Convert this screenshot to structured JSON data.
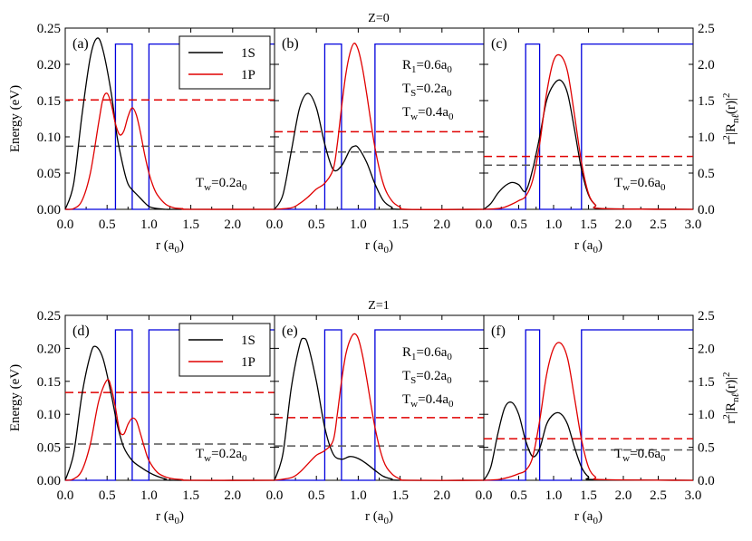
{
  "chart_data": [
    {
      "title": "Z=0",
      "panels": [
        {
          "label": "(a)",
          "type": "line",
          "tw_label": "T",
          "tw_sub": "w",
          "tw_value": "=0.2a",
          "tw_unit_sub": "0",
          "xlim": [
            0,
            2.5
          ],
          "ylim": [
            0,
            0.25
          ],
          "x_ticks": [
            "0.0",
            "0.5",
            "1.0",
            "1.5",
            "2.0"
          ],
          "potential_x": [
            0,
            0.6,
            0.6,
            0.8,
            0.8,
            1.0,
            1.0,
            2.5
          ],
          "potential_y": [
            0,
            0,
            0.228,
            0.228,
            0,
            0,
            0.228,
            0.228
          ],
          "energy_1S": 0.087,
          "energy_1P": 0.151,
          "series": [
            {
              "name": "1S",
              "x": [
                0,
                0.1,
                0.2,
                0.3,
                0.38,
                0.45,
                0.55,
                0.62,
                0.7,
                0.75,
                0.8,
                0.85,
                0.9,
                0.95,
                1.0,
                1.05,
                1.1,
                1.2,
                1.3,
                1.5,
                2.5
              ],
              "y": [
                0,
                0.035,
                0.13,
                0.21,
                0.236,
                0.22,
                0.16,
                0.1,
                0.055,
                0.035,
                0.027,
                0.021,
                0.015,
                0.009,
                0.004,
                0.002,
                0.001,
                0,
                0,
                0,
                0
              ]
            },
            {
              "name": "1P",
              "x": [
                0,
                0.1,
                0.2,
                0.3,
                0.4,
                0.45,
                0.5,
                0.55,
                0.6,
                0.65,
                0.7,
                0.75,
                0.8,
                0.85,
                0.9,
                0.95,
                1.0,
                1.05,
                1.1,
                1.2,
                1.3,
                1.4,
                1.5,
                2.5
              ],
              "y": [
                0,
                0.001,
                0.012,
                0.05,
                0.12,
                0.152,
                0.16,
                0.145,
                0.118,
                0.103,
                0.108,
                0.128,
                0.14,
                0.13,
                0.105,
                0.075,
                0.05,
                0.032,
                0.02,
                0.007,
                0.002,
                0.001,
                0,
                0
              ]
            }
          ]
        },
        {
          "label": "(b)",
          "type": "line",
          "tw_label": "",
          "tw_sub": "",
          "tw_value": "",
          "tw_unit_sub": "",
          "xlim": [
            0,
            2.5
          ],
          "ylim": [
            0,
            0.25
          ],
          "x_ticks": [
            "0.0",
            "0.5",
            "1.0",
            "1.5",
            "2.0"
          ],
          "potential_x": [
            0,
            0.6,
            0.6,
            0.8,
            0.8,
            1.2,
            1.2,
            2.5
          ],
          "potential_y": [
            0,
            0,
            0.228,
            0.228,
            0,
            0,
            0.228,
            0.228
          ],
          "energy_1S": 0.079,
          "energy_1P": 0.107,
          "series": [
            {
              "name": "1S",
              "x": [
                0,
                0.1,
                0.2,
                0.3,
                0.4,
                0.5,
                0.6,
                0.7,
                0.8,
                0.9,
                0.95,
                1.0,
                1.1,
                1.2,
                1.3,
                1.4,
                1.5,
                2.5
              ],
              "y": [
                0,
                0.02,
                0.08,
                0.14,
                0.16,
                0.14,
                0.09,
                0.055,
                0.06,
                0.082,
                0.087,
                0.085,
                0.065,
                0.035,
                0.012,
                0.003,
                0,
                0
              ]
            },
            {
              "name": "1P",
              "x": [
                0,
                0.2,
                0.3,
                0.4,
                0.5,
                0.6,
                0.7,
                0.75,
                0.8,
                0.85,
                0.9,
                0.95,
                1.0,
                1.05,
                1.1,
                1.2,
                1.3,
                1.4,
                1.5,
                1.6,
                2.5
              ],
              "y": [
                0,
                0.002,
                0.008,
                0.017,
                0.028,
                0.036,
                0.055,
                0.09,
                0.14,
                0.185,
                0.215,
                0.229,
                0.22,
                0.195,
                0.16,
                0.085,
                0.035,
                0.012,
                0.003,
                0,
                0
              ]
            }
          ]
        },
        {
          "label": "(c)",
          "type": "line",
          "tw_label": "T",
          "tw_sub": "w",
          "tw_value": "=0.6a",
          "tw_unit_sub": "0",
          "xlim": [
            0,
            3.0
          ],
          "ylim": [
            0,
            0.25
          ],
          "x_ticks": [
            "0.0",
            "0.5",
            "1.0",
            "1.5",
            "2.0",
            "2.5",
            "3.0"
          ],
          "potential_x": [
            0,
            0.6,
            0.6,
            0.8,
            0.8,
            1.4,
            1.4,
            3.0
          ],
          "potential_y": [
            0,
            0,
            0.228,
            0.228,
            0,
            0,
            0.228,
            0.228
          ],
          "energy_1S": 0.061,
          "energy_1P": 0.073,
          "series": [
            {
              "name": "1S",
              "x": [
                0,
                0.1,
                0.2,
                0.3,
                0.4,
                0.5,
                0.6,
                0.7,
                0.8,
                0.9,
                1.0,
                1.1,
                1.2,
                1.3,
                1.4,
                1.5,
                1.6,
                1.7,
                3.0
              ],
              "y": [
                0,
                0.008,
                0.022,
                0.032,
                0.037,
                0.034,
                0.025,
                0.055,
                0.1,
                0.15,
                0.172,
                0.178,
                0.16,
                0.11,
                0.055,
                0.02,
                0.006,
                0.001,
                0
              ]
            },
            {
              "name": "1P",
              "x": [
                0,
                0.2,
                0.3,
                0.4,
                0.5,
                0.6,
                0.7,
                0.8,
                0.9,
                1.0,
                1.1,
                1.2,
                1.3,
                1.4,
                1.5,
                1.6,
                1.7,
                3.0
              ],
              "y": [
                0,
                0.001,
                0.003,
                0.007,
                0.012,
                0.018,
                0.04,
                0.09,
                0.16,
                0.205,
                0.212,
                0.19,
                0.13,
                0.065,
                0.022,
                0.006,
                0.001,
                0
              ]
            }
          ]
        }
      ]
    },
    {
      "title": "Z=1",
      "panels": [
        {
          "label": "(d)",
          "type": "line",
          "tw_label": "T",
          "tw_sub": "w",
          "tw_value": "=0.2a",
          "tw_unit_sub": "0",
          "xlim": [
            0,
            2.5
          ],
          "ylim": [
            0,
            0.25
          ],
          "x_ticks": [
            "0.0",
            "0.5",
            "1.0",
            "1.5",
            "2.0"
          ],
          "potential_x": [
            0,
            0.6,
            0.6,
            0.8,
            0.8,
            1.0,
            1.0,
            2.5
          ],
          "potential_y": [
            0,
            0,
            0.228,
            0.228,
            0,
            0,
            0.228,
            0.228
          ],
          "energy_1S": 0.055,
          "energy_1P": 0.133,
          "series": [
            {
              "name": "1S",
              "x": [
                0,
                0.1,
                0.2,
                0.3,
                0.36,
                0.45,
                0.55,
                0.62,
                0.7,
                0.8,
                0.9,
                1.0,
                1.1,
                1.2,
                1.3,
                2.5
              ],
              "y": [
                0,
                0.04,
                0.13,
                0.19,
                0.203,
                0.185,
                0.13,
                0.085,
                0.05,
                0.03,
                0.02,
                0.012,
                0.006,
                0.002,
                0,
                0
              ]
            },
            {
              "name": "1P",
              "x": [
                0,
                0.1,
                0.2,
                0.3,
                0.4,
                0.5,
                0.55,
                0.6,
                0.65,
                0.7,
                0.75,
                0.8,
                0.85,
                0.9,
                0.95,
                1.0,
                1.1,
                1.2,
                1.3,
                1.4,
                1.5,
                2.5
              ],
              "y": [
                0,
                0.002,
                0.015,
                0.055,
                0.12,
                0.152,
                0.14,
                0.11,
                0.075,
                0.07,
                0.085,
                0.094,
                0.09,
                0.07,
                0.048,
                0.03,
                0.012,
                0.005,
                0.002,
                0.001,
                0,
                0
              ]
            }
          ]
        },
        {
          "label": "(e)",
          "type": "line",
          "tw_label": "",
          "tw_sub": "",
          "tw_value": "",
          "tw_unit_sub": "",
          "xlim": [
            0,
            2.5
          ],
          "ylim": [
            0,
            0.25
          ],
          "x_ticks": [
            "0.0",
            "0.5",
            "1.0",
            "1.5",
            "2.0"
          ],
          "potential_x": [
            0,
            0.6,
            0.6,
            0.8,
            0.8,
            1.2,
            1.2,
            2.5
          ],
          "potential_y": [
            0,
            0,
            0.228,
            0.228,
            0,
            0,
            0.228,
            0.228
          ],
          "energy_1S": 0.052,
          "energy_1P": 0.095,
          "series": [
            {
              "name": "1S",
              "x": [
                0,
                0.1,
                0.2,
                0.3,
                0.35,
                0.4,
                0.5,
                0.6,
                0.7,
                0.8,
                0.9,
                1.0,
                1.1,
                1.2,
                1.3,
                1.4,
                1.5,
                2.5
              ],
              "y": [
                0,
                0.04,
                0.14,
                0.205,
                0.215,
                0.205,
                0.15,
                0.08,
                0.04,
                0.032,
                0.036,
                0.033,
                0.025,
                0.015,
                0.006,
                0.002,
                0,
                0
              ]
            },
            {
              "name": "1P",
              "x": [
                0,
                0.2,
                0.3,
                0.4,
                0.5,
                0.6,
                0.7,
                0.75,
                0.8,
                0.85,
                0.9,
                0.95,
                1.0,
                1.05,
                1.1,
                1.2,
                1.3,
                1.4,
                1.5,
                1.6,
                2.5
              ],
              "y": [
                0,
                0.004,
                0.012,
                0.025,
                0.038,
                0.045,
                0.06,
                0.1,
                0.15,
                0.19,
                0.212,
                0.222,
                0.215,
                0.19,
                0.155,
                0.08,
                0.03,
                0.01,
                0.002,
                0,
                0
              ]
            }
          ]
        },
        {
          "label": "(f)",
          "type": "line",
          "tw_label": "T",
          "tw_sub": "w",
          "tw_value": "=0.6a",
          "tw_unit_sub": "0",
          "xlim": [
            0,
            3.0
          ],
          "ylim": [
            0,
            0.25
          ],
          "x_ticks": [
            "0.0",
            "0.5",
            "1.0",
            "1.5",
            "2.0",
            "2.5",
            "3.0"
          ],
          "potential_x": [
            0,
            0.6,
            0.6,
            0.8,
            0.8,
            1.4,
            1.4,
            3.0
          ],
          "potential_y": [
            0,
            0,
            0.228,
            0.228,
            0,
            0,
            0.228,
            0.228
          ],
          "energy_1S": 0.046,
          "energy_1P": 0.063,
          "series": [
            {
              "name": "1S",
              "x": [
                0,
                0.1,
                0.2,
                0.3,
                0.4,
                0.5,
                0.6,
                0.7,
                0.8,
                0.9,
                1.0,
                1.1,
                1.2,
                1.3,
                1.4,
                1.5,
                1.6,
                3.0
              ],
              "y": [
                0,
                0.02,
                0.07,
                0.11,
                0.118,
                0.1,
                0.06,
                0.036,
                0.048,
                0.085,
                0.1,
                0.101,
                0.085,
                0.05,
                0.02,
                0.005,
                0.001,
                0
              ]
            },
            {
              "name": "1P",
              "x": [
                0,
                0.2,
                0.3,
                0.4,
                0.5,
                0.6,
                0.7,
                0.8,
                0.9,
                1.0,
                1.1,
                1.2,
                1.3,
                1.4,
                1.5,
                1.6,
                1.7,
                3.0
              ],
              "y": [
                0,
                0.001,
                0.003,
                0.006,
                0.01,
                0.015,
                0.035,
                0.09,
                0.16,
                0.2,
                0.208,
                0.185,
                0.125,
                0.062,
                0.02,
                0.005,
                0.001,
                0
              ]
            }
          ]
        }
      ]
    }
  ],
  "axes": {
    "y_left_label": "Energy (eV)",
    "y_left_ticks": [
      "0.00",
      "0.05",
      "0.10",
      "0.15",
      "0.20",
      "0.25"
    ],
    "y_right_ticks": [
      "0.0",
      "0.5",
      "1.0",
      "1.5",
      "2.0",
      "2.5"
    ],
    "y_right_label_parts": [
      "r",
      "2",
      "|R",
      "n",
      "ℓ",
      "(r)|",
      "2"
    ],
    "x_label_main": "r (a",
    "x_label_sub": "0",
    "x_label_close": ")"
  },
  "legend": {
    "entries": [
      {
        "name": "1S",
        "color": "#000000"
      },
      {
        "name": "1P",
        "color": "#e00000"
      }
    ]
  },
  "params_annotation": {
    "r1_main": "R",
    "r1_sub": "1",
    "r1_value": "=0.6a",
    "r1_unit_sub": "0",
    "ts_main": "T",
    "ts_sub": "S",
    "ts_value": "=0.2a",
    "ts_unit_sub": "0",
    "tw_main": "T",
    "tw_sub": "w",
    "tw_value": "=0.4a",
    "tw_unit_sub": "0"
  },
  "colors": {
    "s1": "#000000",
    "p1": "#e00000",
    "potential": "#0000dd",
    "s1_dash": "#555555",
    "p1_dash": "#e00000"
  }
}
